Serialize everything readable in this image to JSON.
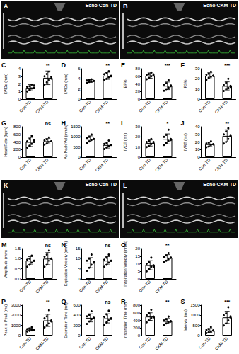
{
  "images": [
    {
      "panel": "A",
      "label": "Echo Con-TD"
    },
    {
      "panel": "B",
      "label": "Echo CKM-TD"
    },
    {
      "panel": "K",
      "label": "Echo Con-TD"
    },
    {
      "panel": "L",
      "label": "Echo CKM-TD"
    }
  ],
  "chart_data": [
    {
      "panel": "C",
      "type": "bar",
      "y_label": "LVIDd (mm)",
      "categories": [
        "Con-TD",
        "CKM-TD"
      ],
      "values": [
        1.5,
        2.8
      ],
      "error": [
        0.4,
        0.9
      ],
      "points": [
        [
          1.0,
          1.2,
          1.4,
          1.5,
          1.6,
          1.7,
          1.9,
          1.8
        ],
        [
          1.9,
          2.2,
          2.5,
          2.7,
          3.0,
          3.3,
          3.6,
          2.9
        ]
      ],
      "significance": "**",
      "ylim": [
        0,
        4
      ],
      "yticks": [
        0,
        1,
        2,
        3,
        4
      ],
      "color": "#000000",
      "grid": false
    },
    {
      "panel": "D",
      "type": "bar",
      "y_label": "LVIDs (mm)",
      "categories": [
        "Con-TD",
        "CKM-TD"
      ],
      "values": [
        3.6,
        4.6
      ],
      "error": [
        0.3,
        0.7
      ],
      "points": [
        [
          3.2,
          3.4,
          3.5,
          3.6,
          3.7,
          3.8,
          3.9,
          3.6
        ],
        [
          3.8,
          4.0,
          4.3,
          4.6,
          4.9,
          5.2,
          5.5,
          4.5
        ]
      ],
      "significance": "**",
      "ylim": [
        0,
        6
      ],
      "yticks": [
        0,
        2,
        4,
        6
      ],
      "color": "#000000",
      "grid": false
    },
    {
      "panel": "E",
      "type": "bar",
      "y_label": "EF%",
      "categories": [
        "Con-TD",
        "CKM-TD"
      ],
      "values": [
        62,
        35
      ],
      "error": [
        7,
        10
      ],
      "points": [
        [
          52,
          56,
          60,
          62,
          64,
          66,
          70,
          65
        ],
        [
          22,
          26,
          30,
          34,
          38,
          42,
          50,
          36
        ]
      ],
      "significance": "***",
      "ylim": [
        0,
        80
      ],
      "yticks": [
        0,
        20,
        40,
        60,
        80
      ],
      "color": "#000000",
      "grid": false
    },
    {
      "panel": "F",
      "type": "bar",
      "y_label": "FS%",
      "categories": [
        "Con-TD",
        "CKM-TD"
      ],
      "values": [
        23,
        13
      ],
      "error": [
        3,
        4
      ],
      "points": [
        [
          19,
          21,
          22,
          23,
          24,
          25,
          27,
          23
        ],
        [
          8,
          10,
          11,
          13,
          14,
          16,
          20,
          12
        ]
      ],
      "significance": "***",
      "ylim": [
        0,
        30
      ],
      "yticks": [
        0,
        10,
        20,
        30
      ],
      "color": "#000000",
      "grid": false
    },
    {
      "panel": "G",
      "type": "bar",
      "y_label": "Heart Rate (bpm)",
      "categories": [
        "Con-TD",
        "CKM-TD"
      ],
      "values": [
        400,
        420
      ],
      "error": [
        120,
        70
      ],
      "points": [
        [
          250,
          300,
          350,
          400,
          420,
          480,
          560,
          440
        ],
        [
          330,
          360,
          400,
          420,
          440,
          470,
          520,
          420
        ]
      ],
      "significance": "ns",
      "ylim": [
        0,
        800
      ],
      "yticks": [
        0,
        200,
        400,
        600,
        800
      ],
      "color": "#000000",
      "grid": false
    },
    {
      "panel": "H",
      "type": "bar",
      "y_label": "Ao Peak Vel (mm/s)",
      "categories": [
        "Con-TD",
        "CKM-TD"
      ],
      "values": [
        900,
        600
      ],
      "error": [
        150,
        150
      ],
      "points": [
        [
          700,
          780,
          850,
          900,
          950,
          1000,
          1120,
          900
        ],
        [
          400,
          480,
          540,
          600,
          650,
          700,
          820,
          610
        ]
      ],
      "significance": "**",
      "ylim": [
        0,
        1500
      ],
      "yticks": [
        0,
        500,
        1000,
        1500
      ],
      "color": "#000000",
      "grid": false
    },
    {
      "panel": "I",
      "type": "bar",
      "y_label": "IVCT (ms)",
      "categories": [
        "Con-TD",
        "CKM-TD"
      ],
      "values": [
        14,
        18
      ],
      "error": [
        3,
        5
      ],
      "points": [
        [
          10,
          11,
          13,
          14,
          15,
          16,
          18,
          15
        ],
        [
          12,
          14,
          16,
          18,
          20,
          22,
          27,
          17
        ]
      ],
      "significance": "*",
      "ylim": [
        0,
        30
      ],
      "yticks": [
        0,
        10,
        20,
        30
      ],
      "color": "#000000",
      "grid": false
    },
    {
      "panel": "J",
      "type": "bar",
      "y_label": "IVRT (ms)",
      "categories": [
        "Con-TD",
        "CKM-TD"
      ],
      "values": [
        17,
        28
      ],
      "error": [
        3,
        8
      ],
      "points": [
        [
          13,
          14,
          16,
          17,
          18,
          19,
          21,
          17
        ],
        [
          18,
          20,
          24,
          28,
          30,
          34,
          38,
          29
        ]
      ],
      "significance": "**",
      "ylim": [
        0,
        40
      ],
      "yticks": [
        0,
        10,
        20,
        30,
        40
      ],
      "color": "#000000",
      "grid": false
    },
    {
      "panel": "M",
      "type": "bar",
      "y_label": "Amplitude (mm)",
      "categories": [
        "Con-TD",
        "CKM-TD"
      ],
      "values": [
        0.9,
        1.0
      ],
      "error": [
        0.2,
        0.3
      ],
      "points": [
        [
          0.6,
          0.7,
          0.8,
          0.9,
          0.95,
          1.0,
          1.15,
          0.9
        ],
        [
          0.6,
          0.7,
          0.9,
          1.0,
          1.1,
          1.2,
          1.4,
          1.0
        ]
      ],
      "significance": "ns",
      "ylim": [
        0,
        1.5
      ],
      "yticks": [
        {
          "value": 0,
          "label": "0.0"
        },
        0.5,
        {
          "value": 1,
          "label": "1.0"
        },
        1.5
      ],
      "color": "#000000",
      "grid": false
    },
    {
      "panel": "N",
      "type": "bar",
      "y_label": "Expiration Velocity (mm/s)",
      "categories": [
        "Con-TD",
        "CKM-TD"
      ],
      "values": [
        8,
        9
      ],
      "error": [
        2.5,
        2
      ],
      "points": [
        [
          4,
          5.5,
          7,
          8,
          9,
          10,
          12,
          8.5
        ],
        [
          6,
          7,
          8,
          9,
          9.5,
          10.5,
          12,
          9
        ]
      ],
      "significance": "ns",
      "ylim": [
        0,
        15
      ],
      "yticks": [
        0,
        5,
        10,
        15
      ],
      "color": "#000000",
      "grid": false
    },
    {
      "panel": "O",
      "type": "bar",
      "y_label": "Inspiration Velocity (mm/s)",
      "categories": [
        "Con-TD",
        "CKM-TD"
      ],
      "values": [
        9,
        14
      ],
      "error": [
        3,
        2
      ],
      "points": [
        [
          5,
          6.5,
          8,
          9,
          10,
          11,
          14,
          8
        ],
        [
          11,
          12,
          13,
          14,
          14.5,
          15.5,
          17,
          14
        ]
      ],
      "significance": "**",
      "ylim": [
        0,
        20
      ],
      "yticks": [
        0,
        5,
        10,
        15,
        20
      ],
      "color": "#000000",
      "grid": false
    },
    {
      "panel": "P",
      "type": "bar",
      "y_label": "Peak to Peak (ms)",
      "categories": [
        "Con-TD",
        "CKM-TD"
      ],
      "values": [
        600,
        1500
      ],
      "error": [
        150,
        600
      ],
      "points": [
        [
          400,
          480,
          550,
          600,
          650,
          700,
          820,
          600
        ],
        [
          800,
          1000,
          1200,
          1500,
          1700,
          1900,
          2500,
          1400
        ]
      ],
      "significance": "**",
      "ylim": [
        0,
        3000
      ],
      "yticks": [
        0,
        1000,
        2000,
        3000
      ],
      "color": "#000000",
      "grid": false
    },
    {
      "panel": "Q",
      "type": "bar",
      "y_label": "Expiration Time (ms)",
      "categories": [
        "Con-TD",
        "CKM-TD"
      ],
      "values": [
        350,
        340
      ],
      "error": [
        80,
        90
      ],
      "points": [
        [
          230,
          280,
          320,
          350,
          380,
          410,
          480,
          350
        ],
        [
          210,
          260,
          300,
          340,
          370,
          420,
          490,
          330
        ]
      ],
      "significance": "ns",
      "ylim": [
        0,
        600
      ],
      "yticks": [
        0,
        200,
        400,
        600
      ],
      "color": "#000000",
      "grid": false
    },
    {
      "panel": "R",
      "type": "bar",
      "y_label": "Inspiration Time (ms)",
      "categories": [
        "Con-TD",
        "CKM-TD"
      ],
      "values": [
        500,
        380
      ],
      "error": [
        100,
        70
      ],
      "points": [
        [
          350,
          400,
          460,
          500,
          540,
          590,
          680,
          480
        ],
        [
          280,
          320,
          350,
          380,
          400,
          430,
          500,
          370
        ]
      ],
      "significance": "**",
      "ylim": [
        0,
        800
      ],
      "yticks": [
        0,
        200,
        400,
        600,
        800
      ],
      "color": "#000000",
      "grid": false
    },
    {
      "panel": "S",
      "type": "bar",
      "y_label": "Interval (ms)",
      "categories": [
        "Con-TD",
        "CKM-TD"
      ],
      "values": [
        250,
        900
      ],
      "error": [
        100,
        300
      ],
      "points": [
        [
          120,
          160,
          200,
          250,
          280,
          320,
          420,
          250
        ],
        [
          500,
          600,
          750,
          900,
          1000,
          1100,
          1400,
          950
        ]
      ],
      "significance": "***",
      "ylim": [
        0,
        1500
      ],
      "yticks": [
        0,
        500,
        1000,
        1500
      ],
      "color": "#000000",
      "grid": false
    }
  ]
}
